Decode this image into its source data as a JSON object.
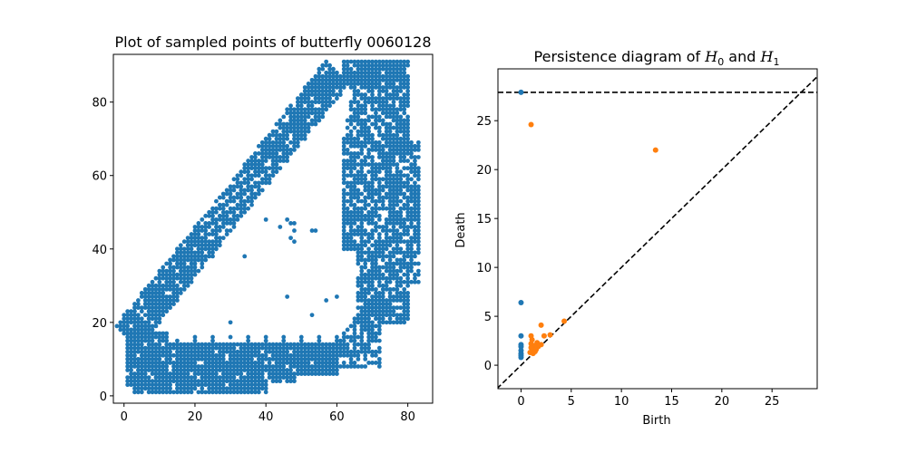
{
  "chart_data": [
    {
      "type": "scatter",
      "title": "Plot of sampled points of butterfly 0060128",
      "xlabel": "",
      "ylabel": "",
      "xlim": [
        -3,
        87
      ],
      "ylim": [
        -2,
        93
      ],
      "xticks": [
        0,
        20,
        40,
        60,
        80
      ],
      "yticks": [
        0,
        20,
        40,
        60,
        80
      ],
      "color": "#1f77b4",
      "grid_spacing": 1,
      "regions": [
        {
          "desc": "bottom band",
          "x": [
            1,
            60
          ],
          "y": [
            1,
            17
          ]
        },
        {
          "desc": "left diagonal edge",
          "from": [
            1,
            16
          ],
          "to": [
            60,
            88
          ],
          "width": 8
        },
        {
          "desc": "right band",
          "x": [
            62,
            83
          ],
          "y": [
            20,
            91
          ]
        },
        {
          "desc": "lower right connector",
          "x": [
            55,
            72
          ],
          "y": [
            8,
            28
          ]
        }
      ],
      "extra_points": [
        [
          34,
          38
        ],
        [
          46,
          48
        ],
        [
          47,
          47
        ],
        [
          48,
          47
        ],
        [
          44,
          46
        ],
        [
          48,
          45
        ],
        [
          53,
          45
        ],
        [
          54,
          45
        ],
        [
          47,
          43
        ],
        [
          48,
          42
        ],
        [
          29,
          48
        ],
        [
          33,
          51
        ],
        [
          40,
          48
        ],
        [
          18,
          33
        ],
        [
          25,
          38
        ],
        [
          46,
          27
        ],
        [
          57,
          26
        ],
        [
          53,
          22
        ],
        [
          60,
          27
        ],
        [
          30,
          20
        ]
      ]
    },
    {
      "type": "scatter",
      "title_prefix": "Persistence diagram of ",
      "title_h0": "H",
      "title_h0_sub": "0",
      "title_and": " and ",
      "title_h1": "H",
      "title_h1_sub": "1",
      "xlabel": "Birth",
      "ylabel": "Death",
      "xlim": [
        -2.3,
        29.5
      ],
      "ylim": [
        -2.4,
        30.3
      ],
      "xticks": [
        0,
        5,
        10,
        15,
        20,
        25
      ],
      "yticks": [
        0,
        5,
        10,
        15,
        20,
        25
      ],
      "infinity_line": 27.9,
      "diagonal": true,
      "series": [
        {
          "name": "H0",
          "color": "#1f77b4",
          "points": [
            [
              0,
              27.9
            ],
            [
              0,
              6.4
            ],
            [
              0,
              3.0
            ],
            [
              0,
              2.1
            ],
            [
              0,
              1.9
            ],
            [
              0,
              1.5
            ],
            [
              0,
              1.2
            ],
            [
              0,
              1.0
            ],
            [
              0,
              0.8
            ]
          ]
        },
        {
          "name": "H1",
          "color": "#ff7f0e",
          "points": [
            [
              1.0,
              24.6
            ],
            [
              13.4,
              22.0
            ],
            [
              4.3,
              4.5
            ],
            [
              2.0,
              4.1
            ],
            [
              2.9,
              3.1
            ],
            [
              2.3,
              3.0
            ],
            [
              1.0,
              3.0
            ],
            [
              1.1,
              2.6
            ],
            [
              1.6,
              2.3
            ],
            [
              1.0,
              2.2
            ],
            [
              2.0,
              2.1
            ],
            [
              1.3,
              2.0
            ],
            [
              1.7,
              1.9
            ],
            [
              1.0,
              1.8
            ],
            [
              1.2,
              1.6
            ],
            [
              1.5,
              1.6
            ],
            [
              1.1,
              1.4
            ],
            [
              0.9,
              1.3
            ],
            [
              1.4,
              1.4
            ],
            [
              1.2,
              1.2
            ]
          ]
        }
      ]
    }
  ]
}
